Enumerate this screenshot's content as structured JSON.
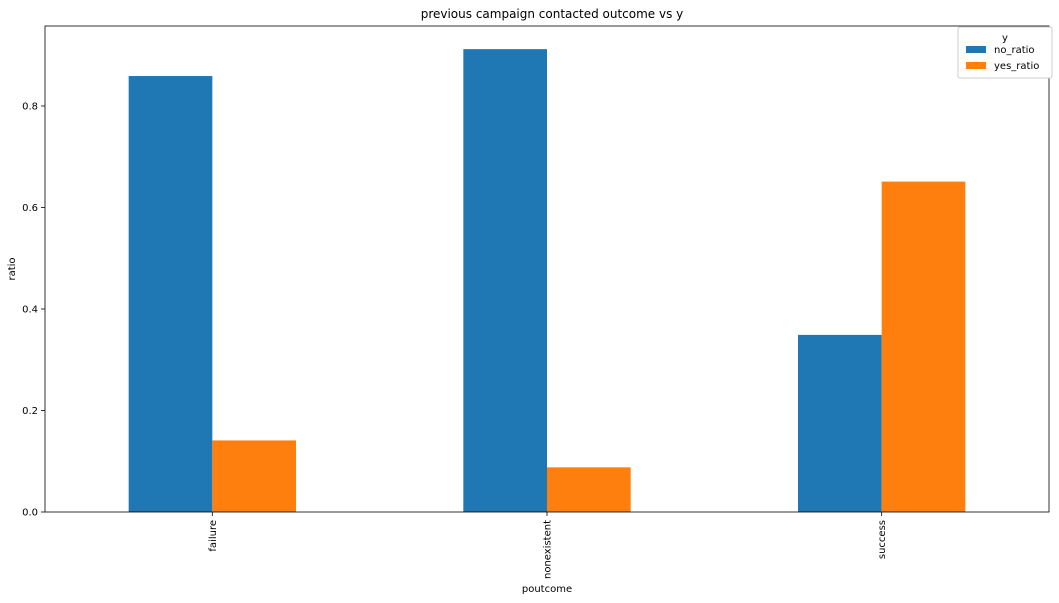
{
  "chart_data": {
    "type": "bar",
    "title": "previous campaign contacted outcome vs y",
    "xlabel": "poutcome",
    "ylabel": "ratio",
    "categories": [
      "failure",
      "nonexistent",
      "success"
    ],
    "series": [
      {
        "name": "no_ratio",
        "values": [
          0.859,
          0.912,
          0.349
        ],
        "color": "#1f77b4"
      },
      {
        "name": "yes_ratio",
        "values": [
          0.141,
          0.088,
          0.651
        ],
        "color": "#ff7f0e"
      }
    ],
    "ylim": [
      0,
      0.9576
    ],
    "yticks": [
      0.0,
      0.2,
      0.4,
      0.6,
      0.8
    ],
    "ytick_labels": [
      "0.0",
      "0.2",
      "0.4",
      "0.6",
      "0.8"
    ],
    "grid": false,
    "legend": {
      "title": "y",
      "placement": "top-right"
    }
  }
}
